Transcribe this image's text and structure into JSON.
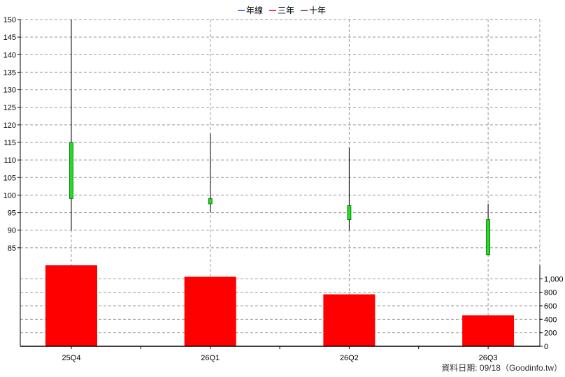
{
  "legend": [
    {
      "label": "年線",
      "color": "#1f4fd0"
    },
    {
      "label": "三年",
      "color": "#e00000"
    },
    {
      "label": "十年",
      "color": "#7a1a4a"
    }
  ],
  "footer": "資料日期: 09/18（Goodinfo.tw）",
  "colors": {
    "candle": "#22dd22",
    "bar": "#ff0000",
    "grid": "#999999"
  },
  "chart_data": [
    {
      "type": "candlestick",
      "categories": [
        "25Q4",
        "26Q1",
        "26Q2",
        "26Q3"
      ],
      "high": [
        150,
        117.5,
        113.5,
        97.5
      ],
      "low": [
        90,
        95,
        90,
        83
      ],
      "top": [
        115,
        99,
        97,
        93
      ],
      "bottom": [
        99,
        97.5,
        93,
        83
      ],
      "ylim": [
        80,
        150
      ],
      "yticks": [
        85,
        90,
        95,
        100,
        105,
        110,
        115,
        120,
        125,
        130,
        135,
        140,
        145,
        150
      ],
      "ytick_labels": [
        "85",
        "90",
        "95",
        "100",
        "105",
        "110",
        "115",
        "120",
        "125",
        "130",
        "135",
        "140",
        "145",
        "150"
      ],
      "axis": "left",
      "grid": true
    },
    {
      "type": "bar",
      "categories": [
        "25Q4",
        "26Q1",
        "26Q2",
        "26Q3"
      ],
      "values": [
        1200,
        1030,
        770,
        460
      ],
      "ylim": [
        0,
        1200
      ],
      "yticks": [
        0,
        200,
        400,
        600,
        800,
        1000
      ],
      "ytick_labels": [
        "0",
        "200",
        "400",
        "600",
        "800",
        "1,000"
      ],
      "axis": "right",
      "grid": true
    }
  ]
}
